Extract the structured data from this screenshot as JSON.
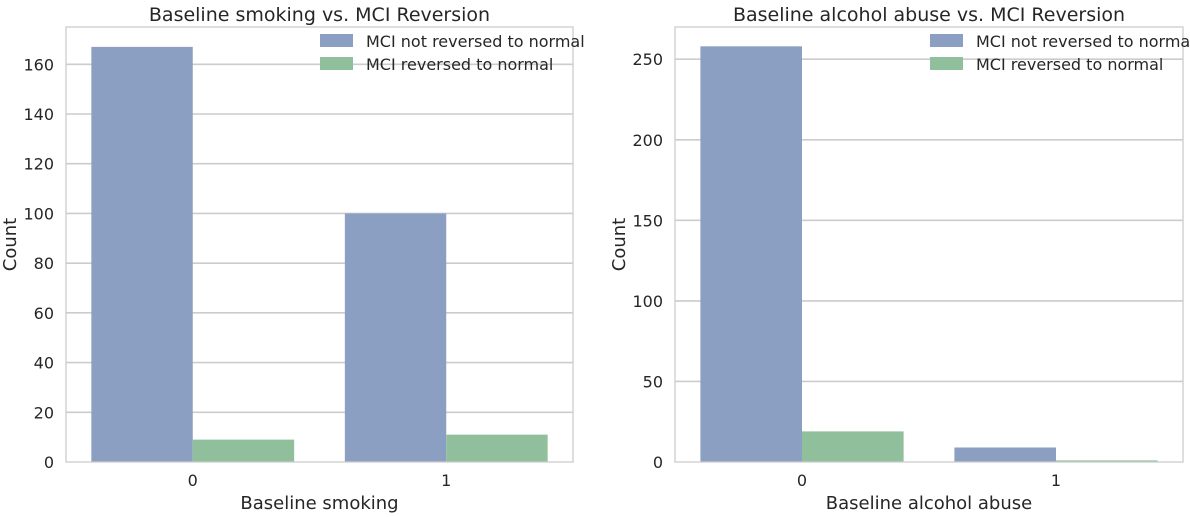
{
  "colors": {
    "series": [
      "#8a9fc1",
      "#8fbf9b"
    ],
    "grid": "#cccccc",
    "frame": "#cccccc"
  },
  "chart_data": [
    {
      "type": "bar",
      "title": "Baseline smoking vs. MCI Reversion",
      "xlabel": "Baseline smoking",
      "ylabel": "Count",
      "categories": [
        "0",
        "1"
      ],
      "series": [
        {
          "name": "MCI not reversed to normal",
          "values": [
            167,
            100
          ]
        },
        {
          "name": "MCI reversed to normal",
          "values": [
            9,
            11
          ]
        }
      ],
      "ylim": [
        0,
        175
      ],
      "yticks": [
        0,
        20,
        40,
        60,
        80,
        100,
        120,
        140,
        160
      ],
      "grid": true,
      "legend": "top-right"
    },
    {
      "type": "bar",
      "title": "Baseline alcohol abuse vs. MCI Reversion",
      "xlabel": "Baseline alcohol abuse",
      "ylabel": "Count",
      "categories": [
        "0",
        "1"
      ],
      "series": [
        {
          "name": "MCI not reversed to normal",
          "values": [
            258,
            9
          ]
        },
        {
          "name": "MCI reversed to normal",
          "values": [
            19,
            1
          ]
        }
      ],
      "ylim": [
        0,
        270
      ],
      "yticks": [
        0,
        50,
        100,
        150,
        200,
        250
      ],
      "grid": true,
      "legend": "top-right"
    }
  ]
}
